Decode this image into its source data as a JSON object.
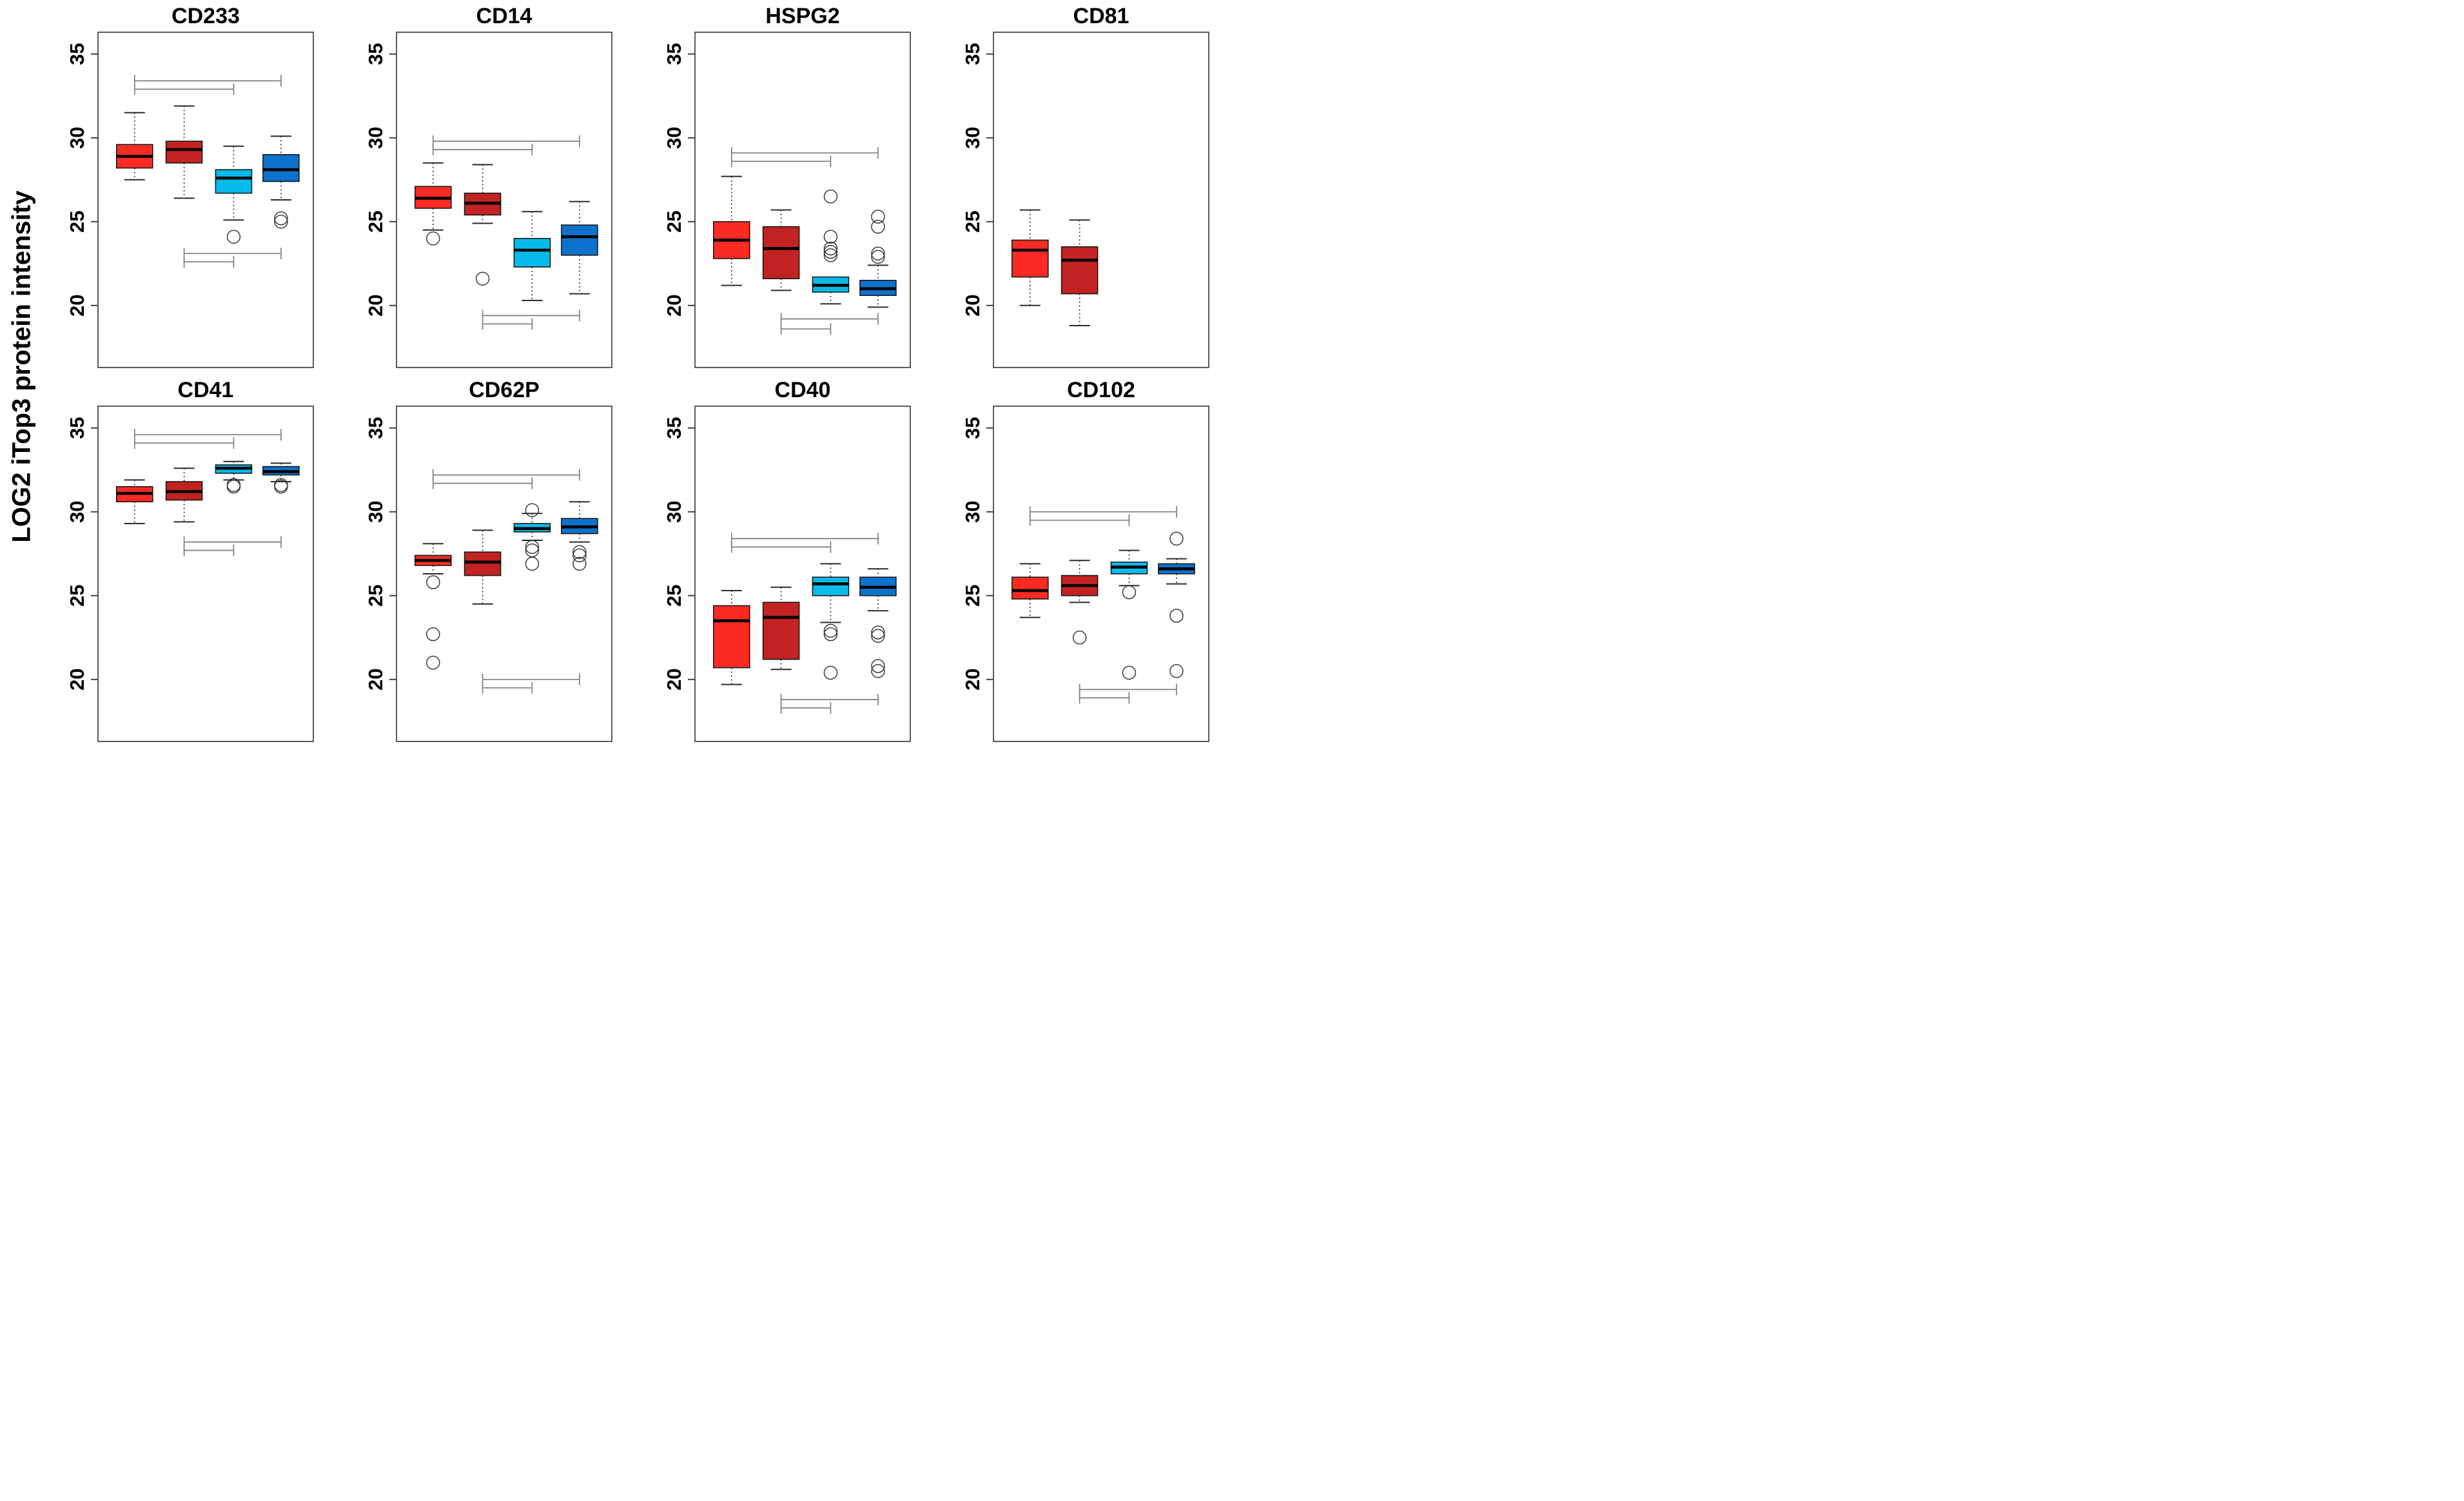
{
  "chart_data": {
    "type": "boxplot",
    "ylabel": "LOG2 iTop3 protein intensity",
    "y_ticks": [
      20,
      25,
      30,
      35
    ],
    "ylim": [
      16.3,
      36.3
    ],
    "grid": false,
    "legend": false,
    "group_colors": [
      "#FB2B24",
      "#C32222",
      "#06BBEB",
      "#0D72CC"
    ],
    "frame_color": "#404040",
    "bracket_color": "#7f7f7f",
    "panels": [
      {
        "title": "CD233",
        "boxes": [
          {
            "group": 1,
            "color_index": 0,
            "whisker_low": 27.5,
            "q1": 28.2,
            "median": 28.9,
            "q3": 29.6,
            "whisker_high": 31.5,
            "outliers": []
          },
          {
            "group": 2,
            "color_index": 1,
            "whisker_low": 26.4,
            "q1": 28.5,
            "median": 29.3,
            "q3": 29.8,
            "whisker_high": 31.9,
            "outliers": []
          },
          {
            "group": 3,
            "color_index": 2,
            "whisker_low": 25.1,
            "q1": 26.7,
            "median": 27.6,
            "q3": 28.1,
            "whisker_high": 29.5,
            "outliers": [
              24.1
            ]
          },
          {
            "group": 4,
            "color_index": 3,
            "whisker_low": 26.3,
            "q1": 27.4,
            "median": 28.1,
            "q3": 29.0,
            "whisker_high": 30.1,
            "outliers": [
              25.2,
              25.0
            ]
          }
        ],
        "comparisons": [
          {
            "from": 1,
            "to": 4,
            "y": 33.4
          },
          {
            "from": 1,
            "to": 3,
            "y": 32.9
          },
          {
            "from": 2,
            "to": 4,
            "y": 23.1
          },
          {
            "from": 2,
            "to": 3,
            "y": 22.6
          }
        ]
      },
      {
        "title": "CD14",
        "boxes": [
          {
            "group": 1,
            "color_index": 0,
            "whisker_low": 24.5,
            "q1": 25.8,
            "median": 26.4,
            "q3": 27.1,
            "whisker_high": 28.5,
            "outliers": [
              24.0
            ]
          },
          {
            "group": 2,
            "color_index": 1,
            "whisker_low": 24.9,
            "q1": 25.4,
            "median": 26.1,
            "q3": 26.7,
            "whisker_high": 28.4,
            "outliers": [
              21.6
            ]
          },
          {
            "group": 3,
            "color_index": 2,
            "whisker_low": 20.3,
            "q1": 22.3,
            "median": 23.3,
            "q3": 24.0,
            "whisker_high": 25.6,
            "outliers": []
          },
          {
            "group": 4,
            "color_index": 3,
            "whisker_low": 20.7,
            "q1": 23.0,
            "median": 24.1,
            "q3": 24.8,
            "whisker_high": 26.2,
            "outliers": []
          }
        ],
        "comparisons": [
          {
            "from": 1,
            "to": 4,
            "y": 29.8
          },
          {
            "from": 1,
            "to": 3,
            "y": 29.3
          },
          {
            "from": 2,
            "to": 4,
            "y": 19.4
          },
          {
            "from": 2,
            "to": 3,
            "y": 18.9
          }
        ]
      },
      {
        "title": "HSPG2",
        "boxes": [
          {
            "group": 1,
            "color_index": 0,
            "whisker_low": 21.2,
            "q1": 22.8,
            "median": 23.9,
            "q3": 25.0,
            "whisker_high": 27.7,
            "outliers": []
          },
          {
            "group": 2,
            "color_index": 1,
            "whisker_low": 20.9,
            "q1": 21.6,
            "median": 23.4,
            "q3": 24.7,
            "whisker_high": 25.7,
            "outliers": []
          },
          {
            "group": 3,
            "color_index": 2,
            "whisker_low": 20.1,
            "q1": 20.8,
            "median": 21.2,
            "q3": 21.7,
            "whisker_high": 21.7,
            "outliers": [
              26.5,
              24.1,
              23.4,
              23.2,
              23.0
            ]
          },
          {
            "group": 4,
            "color_index": 3,
            "whisker_low": 19.9,
            "q1": 20.6,
            "median": 21.0,
            "q3": 21.5,
            "whisker_high": 22.4,
            "outliers": [
              25.3,
              24.7,
              23.1,
              22.9
            ]
          }
        ],
        "comparisons": [
          {
            "from": 1,
            "to": 4,
            "y": 29.1
          },
          {
            "from": 1,
            "to": 3,
            "y": 28.6
          },
          {
            "from": 2,
            "to": 4,
            "y": 19.2
          },
          {
            "from": 2,
            "to": 3,
            "y": 18.6
          }
        ]
      },
      {
        "title": "CD81",
        "boxes": [
          {
            "group": 1,
            "color_index": 0,
            "whisker_low": 20.0,
            "q1": 21.7,
            "median": 23.3,
            "q3": 23.9,
            "whisker_high": 25.7,
            "outliers": []
          },
          {
            "group": 2,
            "color_index": 1,
            "whisker_low": 18.8,
            "q1": 20.7,
            "median": 22.7,
            "q3": 23.5,
            "whisker_high": 25.1,
            "outliers": []
          }
        ],
        "comparisons": []
      },
      {
        "title": "CD41",
        "boxes": [
          {
            "group": 1,
            "color_index": 0,
            "whisker_low": 29.3,
            "q1": 30.6,
            "median": 31.1,
            "q3": 31.5,
            "whisker_high": 31.9,
            "outliers": []
          },
          {
            "group": 2,
            "color_index": 1,
            "whisker_low": 29.4,
            "q1": 30.7,
            "median": 31.2,
            "q3": 31.8,
            "whisker_high": 32.6,
            "outliers": []
          },
          {
            "group": 3,
            "color_index": 2,
            "whisker_low": 31.9,
            "q1": 32.3,
            "median": 32.6,
            "q3": 32.8,
            "whisker_high": 33.0,
            "outliers": [
              31.6,
              31.5
            ]
          },
          {
            "group": 4,
            "color_index": 3,
            "whisker_low": 31.8,
            "q1": 32.2,
            "median": 32.4,
            "q3": 32.7,
            "whisker_high": 32.9,
            "outliers": [
              31.6,
              31.5
            ]
          }
        ],
        "comparisons": [
          {
            "from": 1,
            "to": 4,
            "y": 34.6
          },
          {
            "from": 1,
            "to": 3,
            "y": 34.1
          },
          {
            "from": 2,
            "to": 4,
            "y": 28.2
          },
          {
            "from": 2,
            "to": 3,
            "y": 27.7
          }
        ]
      },
      {
        "title": "CD62P",
        "boxes": [
          {
            "group": 1,
            "color_index": 0,
            "whisker_low": 26.3,
            "q1": 26.8,
            "median": 27.1,
            "q3": 27.4,
            "whisker_high": 28.1,
            "outliers": [
              25.8,
              22.7,
              21.0
            ]
          },
          {
            "group": 2,
            "color_index": 1,
            "whisker_low": 24.5,
            "q1": 26.2,
            "median": 27.0,
            "q3": 27.6,
            "whisker_high": 28.9,
            "outliers": []
          },
          {
            "group": 3,
            "color_index": 2,
            "whisker_low": 28.3,
            "q1": 28.8,
            "median": 29.0,
            "q3": 29.3,
            "whisker_high": 29.9,
            "outliers": [
              30.1,
              27.9,
              27.7,
              26.9
            ]
          },
          {
            "group": 4,
            "color_index": 3,
            "whisker_low": 28.2,
            "q1": 28.7,
            "median": 29.1,
            "q3": 29.6,
            "whisker_high": 30.6,
            "outliers": [
              27.6,
              27.4,
              26.9
            ]
          }
        ],
        "comparisons": [
          {
            "from": 1,
            "to": 4,
            "y": 32.2
          },
          {
            "from": 1,
            "to": 3,
            "y": 31.7
          },
          {
            "from": 2,
            "to": 4,
            "y": 20.0
          },
          {
            "from": 2,
            "to": 3,
            "y": 19.5
          }
        ]
      },
      {
        "title": "CD40",
        "boxes": [
          {
            "group": 1,
            "color_index": 0,
            "whisker_low": 19.7,
            "q1": 20.7,
            "median": 23.5,
            "q3": 24.4,
            "whisker_high": 25.3,
            "outliers": []
          },
          {
            "group": 2,
            "color_index": 1,
            "whisker_low": 20.6,
            "q1": 21.2,
            "median": 23.7,
            "q3": 24.6,
            "whisker_high": 25.5,
            "outliers": []
          },
          {
            "group": 3,
            "color_index": 2,
            "whisker_low": 23.4,
            "q1": 25.0,
            "median": 25.7,
            "q3": 26.1,
            "whisker_high": 26.9,
            "outliers": [
              22.9,
              22.7,
              20.4
            ]
          },
          {
            "group": 4,
            "color_index": 3,
            "whisker_low": 24.1,
            "q1": 25.0,
            "median": 25.5,
            "q3": 26.1,
            "whisker_high": 26.6,
            "outliers": [
              22.8,
              22.6,
              20.8,
              20.5
            ]
          }
        ],
        "comparisons": [
          {
            "from": 1,
            "to": 4,
            "y": 28.4
          },
          {
            "from": 1,
            "to": 3,
            "y": 27.9
          },
          {
            "from": 2,
            "to": 4,
            "y": 18.8
          },
          {
            "from": 2,
            "to": 3,
            "y": 18.3
          }
        ]
      },
      {
        "title": "CD102",
        "boxes": [
          {
            "group": 1,
            "color_index": 0,
            "whisker_low": 23.7,
            "q1": 24.8,
            "median": 25.3,
            "q3": 26.1,
            "whisker_high": 26.9,
            "outliers": []
          },
          {
            "group": 2,
            "color_index": 1,
            "whisker_low": 24.6,
            "q1": 25.0,
            "median": 25.6,
            "q3": 26.2,
            "whisker_high": 27.1,
            "outliers": [
              22.5
            ]
          },
          {
            "group": 3,
            "color_index": 2,
            "whisker_low": 25.6,
            "q1": 26.3,
            "median": 26.7,
            "q3": 27.0,
            "whisker_high": 27.7,
            "outliers": [
              25.2,
              20.4
            ]
          },
          {
            "group": 4,
            "color_index": 3,
            "whisker_low": 25.7,
            "q1": 26.3,
            "median": 26.6,
            "q3": 26.9,
            "whisker_high": 27.2,
            "outliers": [
              28.4,
              23.8,
              20.5
            ]
          }
        ],
        "comparisons": [
          {
            "from": 1,
            "to": 4,
            "y": 30.0
          },
          {
            "from": 1,
            "to": 3,
            "y": 29.5
          },
          {
            "from": 2,
            "to": 4,
            "y": 19.4
          },
          {
            "from": 2,
            "to": 3,
            "y": 18.9
          }
        ]
      }
    ]
  }
}
